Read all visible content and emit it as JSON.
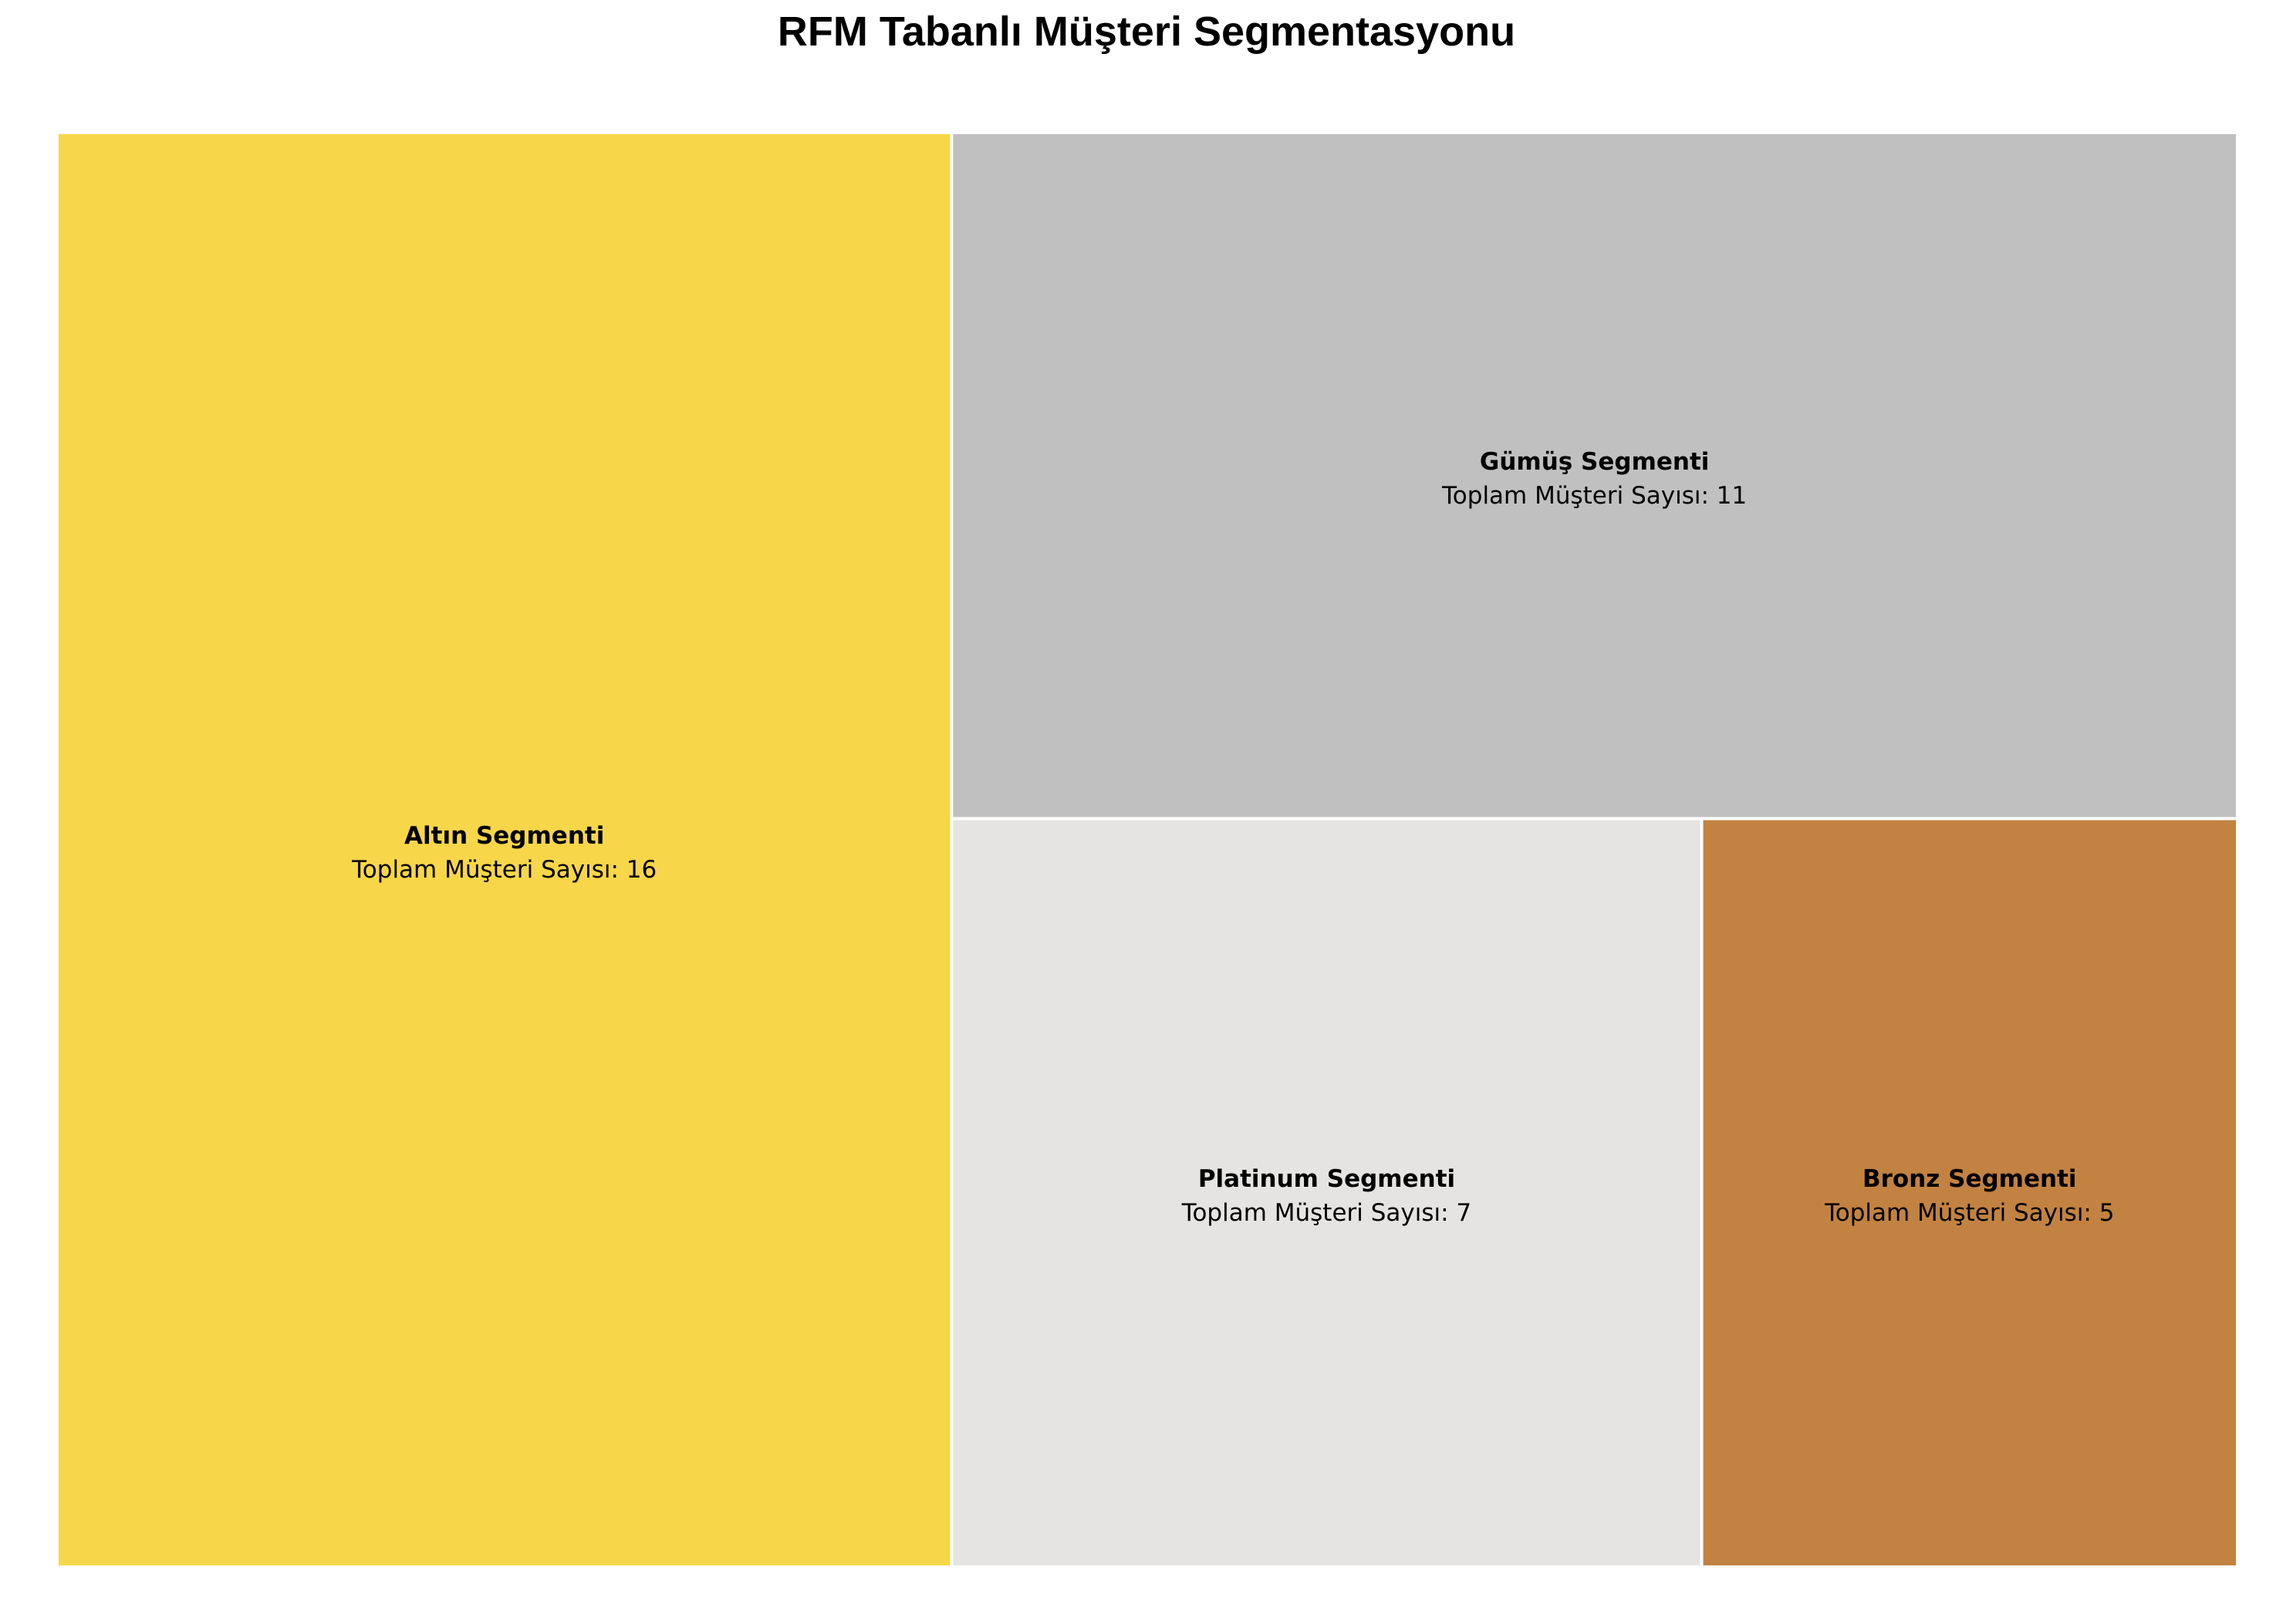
{
  "chart_data": {
    "type": "treemap",
    "title": "RFM Tabanlı Müşteri Segmentasyonu",
    "value_label_prefix": "Toplam Müşteri Sayısı: ",
    "segments": [
      {
        "name": "Altın Segmenti",
        "value": 16,
        "color": "#f8d64a"
      },
      {
        "name": "Gümüş Segmenti",
        "value": 11,
        "color": "#c0c0c0"
      },
      {
        "name": "Platinum Segmenti",
        "value": 7,
        "color": "#e5e4e2"
      },
      {
        "name": "Bronz Segmenti",
        "value": 5,
        "color": "#c28242"
      }
    ]
  }
}
